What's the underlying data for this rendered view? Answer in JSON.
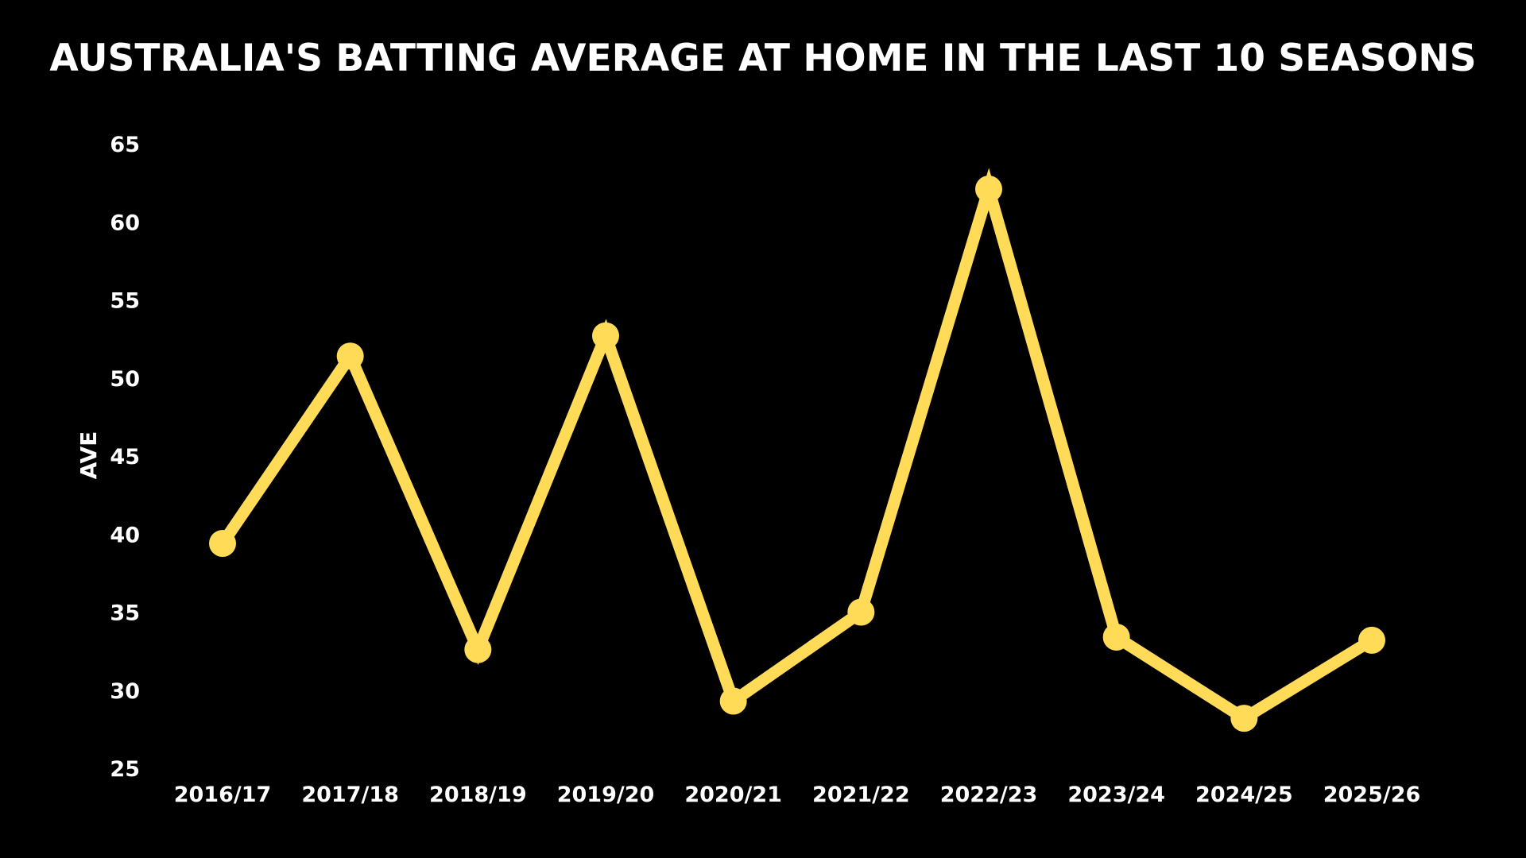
{
  "chart_data": {
    "type": "line",
    "title": "AUSTRALIA'S BATTING AVERAGE AT HOME IN THE LAST 10 SEASONS",
    "xlabel": "",
    "ylabel": "AVE",
    "categories": [
      "2016/17",
      "2017/18",
      "2018/19",
      "2019/20",
      "2020/21",
      "2021/22",
      "2022/23",
      "2023/24",
      "2024/25",
      "2025/26"
    ],
    "series": [
      {
        "values": [
          39.4,
          51.4,
          32.6,
          52.7,
          29.3,
          35.0,
          62.1,
          33.4,
          28.2,
          33.2
        ]
      }
    ],
    "ylim": [
      25,
      65
    ],
    "yticks": [
      25,
      30,
      35,
      40,
      45,
      50,
      55,
      60,
      65
    ],
    "grid": false,
    "legend": "none",
    "colors": {
      "background": "#000000",
      "line": "#ffdb58",
      "text": "#ffffff"
    }
  }
}
